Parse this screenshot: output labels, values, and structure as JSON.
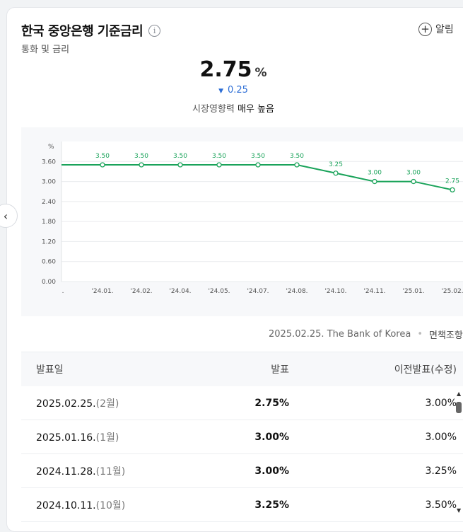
{
  "header": {
    "title": "한국 중앙은행 기준금리",
    "subtitle": "통화 및 금리",
    "alarm_label": "알림"
  },
  "summary": {
    "value": "2.75",
    "unit": "%",
    "change": "0.25",
    "change_direction": "down",
    "impact_label": "시장영향력",
    "impact_value": "매우 높음"
  },
  "chart_data": {
    "type": "line",
    "yunit": "%",
    "ylim": [
      0,
      4.2
    ],
    "yticks": [
      "0.00",
      "0.60",
      "1.20",
      "1.80",
      "2.40",
      "3.00",
      "3.60"
    ],
    "categories": [
      ".",
      "'24.01.",
      "'24.02.",
      "'24.04.",
      "'24.05.",
      "'24.07.",
      "'24.08.",
      "'24.10.",
      "'24.11.",
      "'25.01.",
      "'25.02."
    ],
    "values": [
      3.5,
      3.5,
      3.5,
      3.5,
      3.5,
      3.5,
      3.5,
      3.25,
      3.0,
      3.0,
      2.75
    ],
    "data_labels": [
      "",
      "3.50",
      "3.50",
      "3.50",
      "3.50",
      "3.50",
      "3.50",
      "3.25",
      "3.00",
      "3.00",
      "2.75"
    ],
    "color": "#1aa35a",
    "grid": true
  },
  "source": {
    "date": "2025.02.25.",
    "provider": "The Bank of Korea",
    "disclaimer": "면책조항"
  },
  "table": {
    "headers": [
      "발표일",
      "발표",
      "이전발표(수정)"
    ],
    "rows": [
      {
        "date": "2025.02.25.",
        "month": "(2월)",
        "value": "2.75%",
        "prev": "3.00%"
      },
      {
        "date": "2025.01.16.",
        "month": "(1월)",
        "value": "3.00%",
        "prev": "3.00%"
      },
      {
        "date": "2024.11.28.",
        "month": "(11월)",
        "value": "3.00%",
        "prev": "3.25%"
      },
      {
        "date": "2024.10.11.",
        "month": "(10월)",
        "value": "3.25%",
        "prev": "3.50%"
      }
    ]
  }
}
